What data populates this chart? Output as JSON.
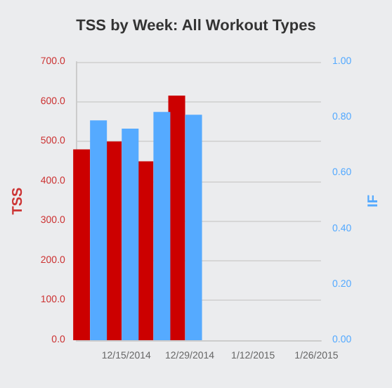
{
  "chart_data": {
    "type": "bar",
    "title": "TSS by Week: All Workout Types",
    "ylabel": "TSS",
    "y2label": "IF",
    "x": [
      "2014-12-07",
      "2014-12-14",
      "2014-12-21",
      "2014-12-28"
    ],
    "series": [
      {
        "color": "#cc0000",
        "values": [
          480,
          500,
          450,
          615
        ]
      },
      {
        "color": "#55aaff",
        "axis": "y2",
        "values": [
          0.79,
          0.76,
          0.82,
          0.81
        ]
      }
    ],
    "xlim": [
      "2014-12-04",
      "2015-01-27"
    ],
    "xticks": [
      {
        "value": "2014-12-15",
        "label": "12/15/2014"
      },
      {
        "value": "2014-12-29",
        "label": "12/29/2014"
      },
      {
        "value": "2015-01-12",
        "label": "1/12/2015"
      },
      {
        "value": "2015-01-26",
        "label": "1/26/2015"
      }
    ],
    "ylim": [
      0,
      700
    ],
    "yticks": [
      {
        "value": 0,
        "label": "0.0"
      },
      {
        "value": 100,
        "label": "100.0"
      },
      {
        "value": 200,
        "label": "200.0"
      },
      {
        "value": 300,
        "label": "300.0"
      },
      {
        "value": 400,
        "label": "400.0"
      },
      {
        "value": 500,
        "label": "500.0"
      },
      {
        "value": 600,
        "label": "600.0"
      },
      {
        "value": 700,
        "label": "700.0"
      }
    ],
    "y2lim": [
      0,
      1
    ],
    "y2ticks": [
      {
        "value": 0,
        "label": "0.00"
      },
      {
        "value": 0.2,
        "label": "0.20"
      },
      {
        "value": 0.4,
        "label": "0.40"
      },
      {
        "value": 0.6,
        "label": "0.60"
      },
      {
        "value": 0.8,
        "label": "0.80"
      },
      {
        "value": 1,
        "label": "1.00"
      }
    ],
    "grid": "y"
  }
}
